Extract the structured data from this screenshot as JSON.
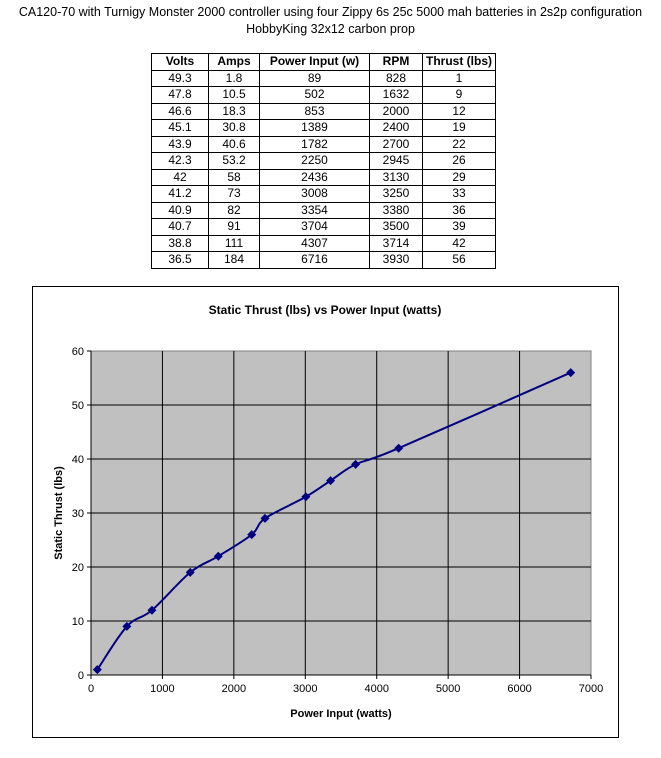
{
  "header": {
    "title_line1": "CA120-70 with Turnigy Monster 2000 controller using four Zippy 6s 25c 5000 mah batteries in 2s2p configuration",
    "title_line2": "HobbyKing 32x12 carbon prop"
  },
  "table": {
    "columns": [
      "Volts",
      "Amps",
      "Power Input (w)",
      "RPM",
      "Thrust (lbs)"
    ],
    "rows": [
      [
        "49.3",
        "1.8",
        "89",
        "828",
        "1"
      ],
      [
        "47.8",
        "10.5",
        "502",
        "1632",
        "9"
      ],
      [
        "46.6",
        "18.3",
        "853",
        "2000",
        "12"
      ],
      [
        "45.1",
        "30.8",
        "1389",
        "2400",
        "19"
      ],
      [
        "43.9",
        "40.6",
        "1782",
        "2700",
        "22"
      ],
      [
        "42.3",
        "53.2",
        "2250",
        "2945",
        "26"
      ],
      [
        "42",
        "58",
        "2436",
        "3130",
        "29"
      ],
      [
        "41.2",
        "73",
        "3008",
        "3250",
        "33"
      ],
      [
        "40.9",
        "82",
        "3354",
        "3380",
        "36"
      ],
      [
        "40.7",
        "91",
        "3704",
        "3500",
        "39"
      ],
      [
        "38.8",
        "111",
        "4307",
        "3714",
        "42"
      ],
      [
        "36.5",
        "184",
        "6716",
        "3930",
        "56"
      ]
    ]
  },
  "chart_data": {
    "type": "scatter",
    "title": "Static Thrust (lbs) vs Power Input (watts)",
    "xlabel": "Power Input (watts)",
    "ylabel": "Static Thrust (lbs)",
    "xlim": [
      0,
      7000
    ],
    "ylim": [
      0,
      60
    ],
    "xticks": [
      0,
      1000,
      2000,
      3000,
      4000,
      5000,
      6000,
      7000
    ],
    "yticks": [
      0,
      10,
      20,
      30,
      40,
      50,
      60
    ],
    "grid": true,
    "smoothed_line": true,
    "plot_background": "#c0c0c0",
    "series_color": "#000080",
    "series": [
      {
        "x": [
          89,
          502,
          853,
          1389,
          1782,
          2250,
          2436,
          3008,
          3354,
          3704,
          4307,
          6716
        ],
        "y": [
          1,
          9,
          12,
          19,
          22,
          26,
          29,
          33,
          36,
          39,
          42,
          56
        ]
      }
    ]
  }
}
